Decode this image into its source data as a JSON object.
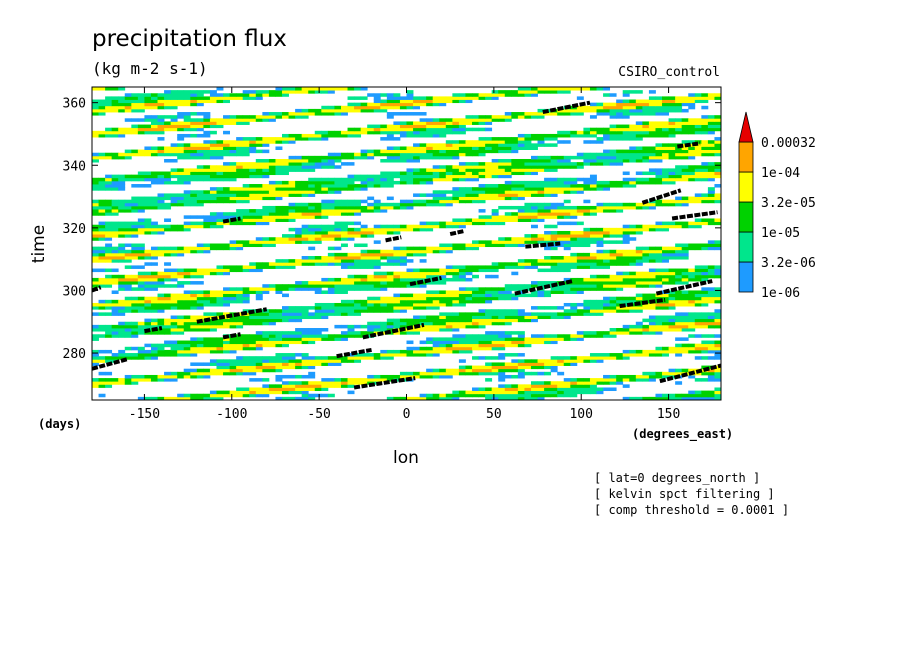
{
  "chart_data": {
    "type": "heatmap",
    "title": "precipitation flux",
    "units": "(kg m-2 s-1)",
    "model": "CSIRO_control",
    "xlabel": "lon",
    "x_units": "(degrees_east)",
    "ylabel": "time",
    "y_units": "(days)",
    "xlim": [
      -180,
      180
    ],
    "ylim": [
      265,
      365
    ],
    "xticks": [
      -150,
      -100,
      -50,
      0,
      50,
      100,
      150
    ],
    "yticks": [
      280,
      300,
      320,
      340,
      360
    ],
    "xtick_labels": [
      "-150",
      "-100",
      "-50",
      "0",
      "50",
      "100",
      "150"
    ],
    "ytick_labels": [
      "280",
      "300",
      "320",
      "340",
      "360"
    ],
    "colorbar": {
      "levels": [
        "1e-06",
        "3.2e-06",
        "1e-05",
        "3.2e-05",
        "1e-04",
        "0.00032"
      ],
      "colors": [
        "#1e9bff",
        "#00e68c",
        "#00d200",
        "#ffff00",
        "#ffa500",
        "#e60000"
      ]
    },
    "annotations": [
      "[ lat=0 degrees_north ]",
      "[ kelvin spct filtering ]",
      "[ comp threshold = 0.0001 ]"
    ],
    "kelvin_tracks": [
      [
        -180,
        275,
        -160,
        278
      ],
      [
        -180,
        300,
        -175,
        301
      ],
      [
        -150,
        287,
        -140,
        288
      ],
      [
        -120,
        290,
        -80,
        294
      ],
      [
        -105,
        285,
        -95,
        286
      ],
      [
        -105,
        322,
        -95,
        323
      ],
      [
        -40,
        279,
        -20,
        281
      ],
      [
        -30,
        269,
        5,
        272
      ],
      [
        -25,
        285,
        10,
        289
      ],
      [
        -12,
        316,
        -3,
        317
      ],
      [
        2,
        302,
        20,
        304
      ],
      [
        25,
        318,
        33,
        319
      ],
      [
        62,
        299,
        95,
        303
      ],
      [
        68,
        314,
        88,
        315
      ],
      [
        78,
        357,
        105,
        360
      ],
      [
        122,
        295,
        148,
        297
      ],
      [
        135,
        328,
        157,
        332
      ],
      [
        143,
        299,
        175,
        303
      ],
      [
        145,
        271,
        180,
        276
      ],
      [
        152,
        323,
        178,
        325
      ],
      [
        155,
        346,
        168,
        347
      ]
    ]
  }
}
